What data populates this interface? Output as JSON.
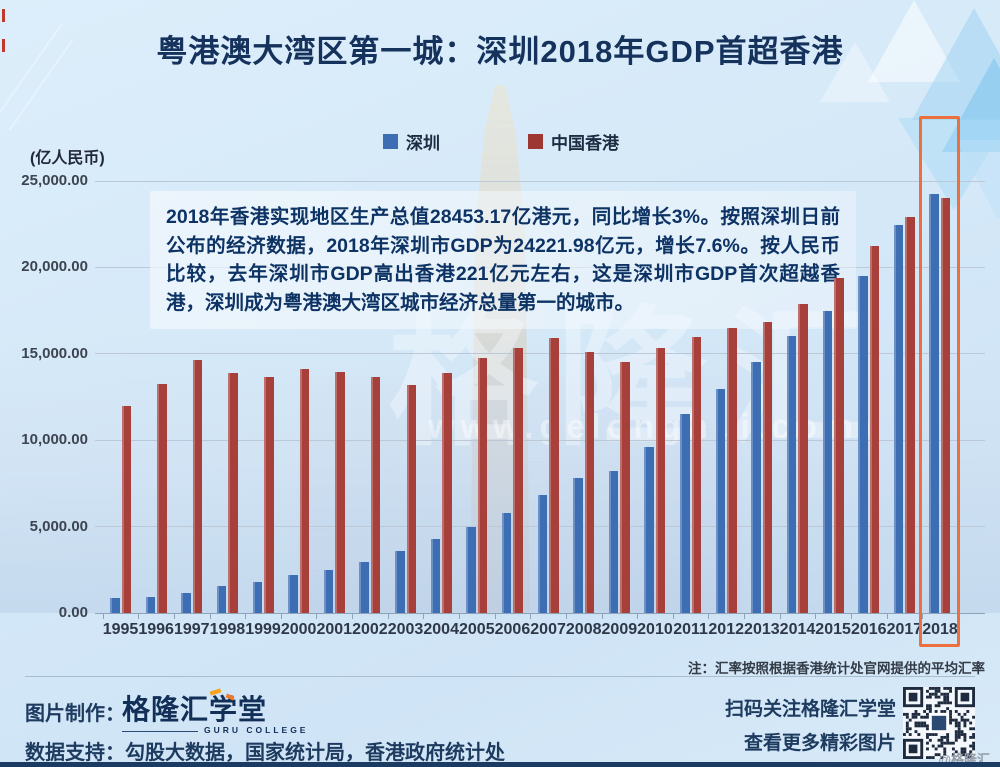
{
  "title": "粤港澳大湾区第一城：深圳2018年GDP首超香港",
  "y_axis_unit": "(亿人民币)",
  "legend": [
    {
      "label": "深圳",
      "color": "#3d6db2"
    },
    {
      "label": "中国香港",
      "color": "#9c3734"
    }
  ],
  "annotation": "2018年香港实现地区生产总值28453.17亿港元，同比增长3%。按照深圳日前公布的经济数据，2018年深圳市GDP为24221.98亿元，增长7.6%。按人民币比较，去年深圳市GDP高出香港221亿元左右，这是深圳市GDP首次超越香港，深圳成为粤港澳大湾区城市经济总量第一的城市。",
  "note": "注：汇率按照根据香港统计处官网提供的平均汇率",
  "watermark": {
    "brand_large": "格隆汇",
    "site": "www.gelonghui.com"
  },
  "footer": {
    "credit_label": "图片制作：",
    "logo_text": "格隆汇学堂",
    "logo_subtext": "GURU COLLEGE",
    "data_support": "数据支持：勾股大数据，国家统计局，香港政府统计处",
    "qr_line1": "扫码关注格隆汇学堂",
    "qr_line2": "查看更多精彩图片",
    "handle": "@格隆汇"
  },
  "chart_data": {
    "type": "bar",
    "title": "粤港澳大湾区第一城：深圳2018年GDP首超香港",
    "ylabel": "(亿人民币)",
    "ylim": [
      0,
      25000
    ],
    "yticks": [
      0,
      5000,
      10000,
      15000,
      20000,
      25000
    ],
    "ytick_labels": [
      "0.00",
      "5,000.00",
      "10,000.00",
      "15,000.00",
      "20,000.00",
      "25,000.00"
    ],
    "grid": true,
    "legend_position": "top",
    "highlight_year": 2018,
    "categories": [
      1995,
      1996,
      1997,
      1998,
      1999,
      2000,
      2001,
      2002,
      2003,
      2004,
      2005,
      2006,
      2007,
      2008,
      2009,
      2010,
      2011,
      2012,
      2013,
      2014,
      2015,
      2016,
      2017,
      2018
    ],
    "series": [
      {
        "name": "深圳",
        "color": "#3d6db2",
        "values": [
          842.79,
          950.04,
          1130.01,
          1534.77,
          1804.02,
          2187.45,
          2482.49,
          2969.52,
          3585.72,
          4282.14,
          4950.91,
          5813.56,
          6801.57,
          7806.54,
          8201.32,
          9581.51,
          11502.06,
          12971.19,
          14500.23,
          16001.82,
          17502.86,
          19492.6,
          22438.39,
          24221.98
        ]
      },
      {
        "name": "中国香港",
        "color": "#a73f3b",
        "values": [
          11975,
          13230,
          14620,
          13870,
          13655,
          14140,
          13945,
          13655,
          13175,
          13905,
          14740,
          15350,
          15930,
          15120,
          14540,
          15315,
          15990,
          16510,
          16855,
          17865,
          19405,
          21240,
          22940,
          24000.55
        ]
      }
    ]
  }
}
